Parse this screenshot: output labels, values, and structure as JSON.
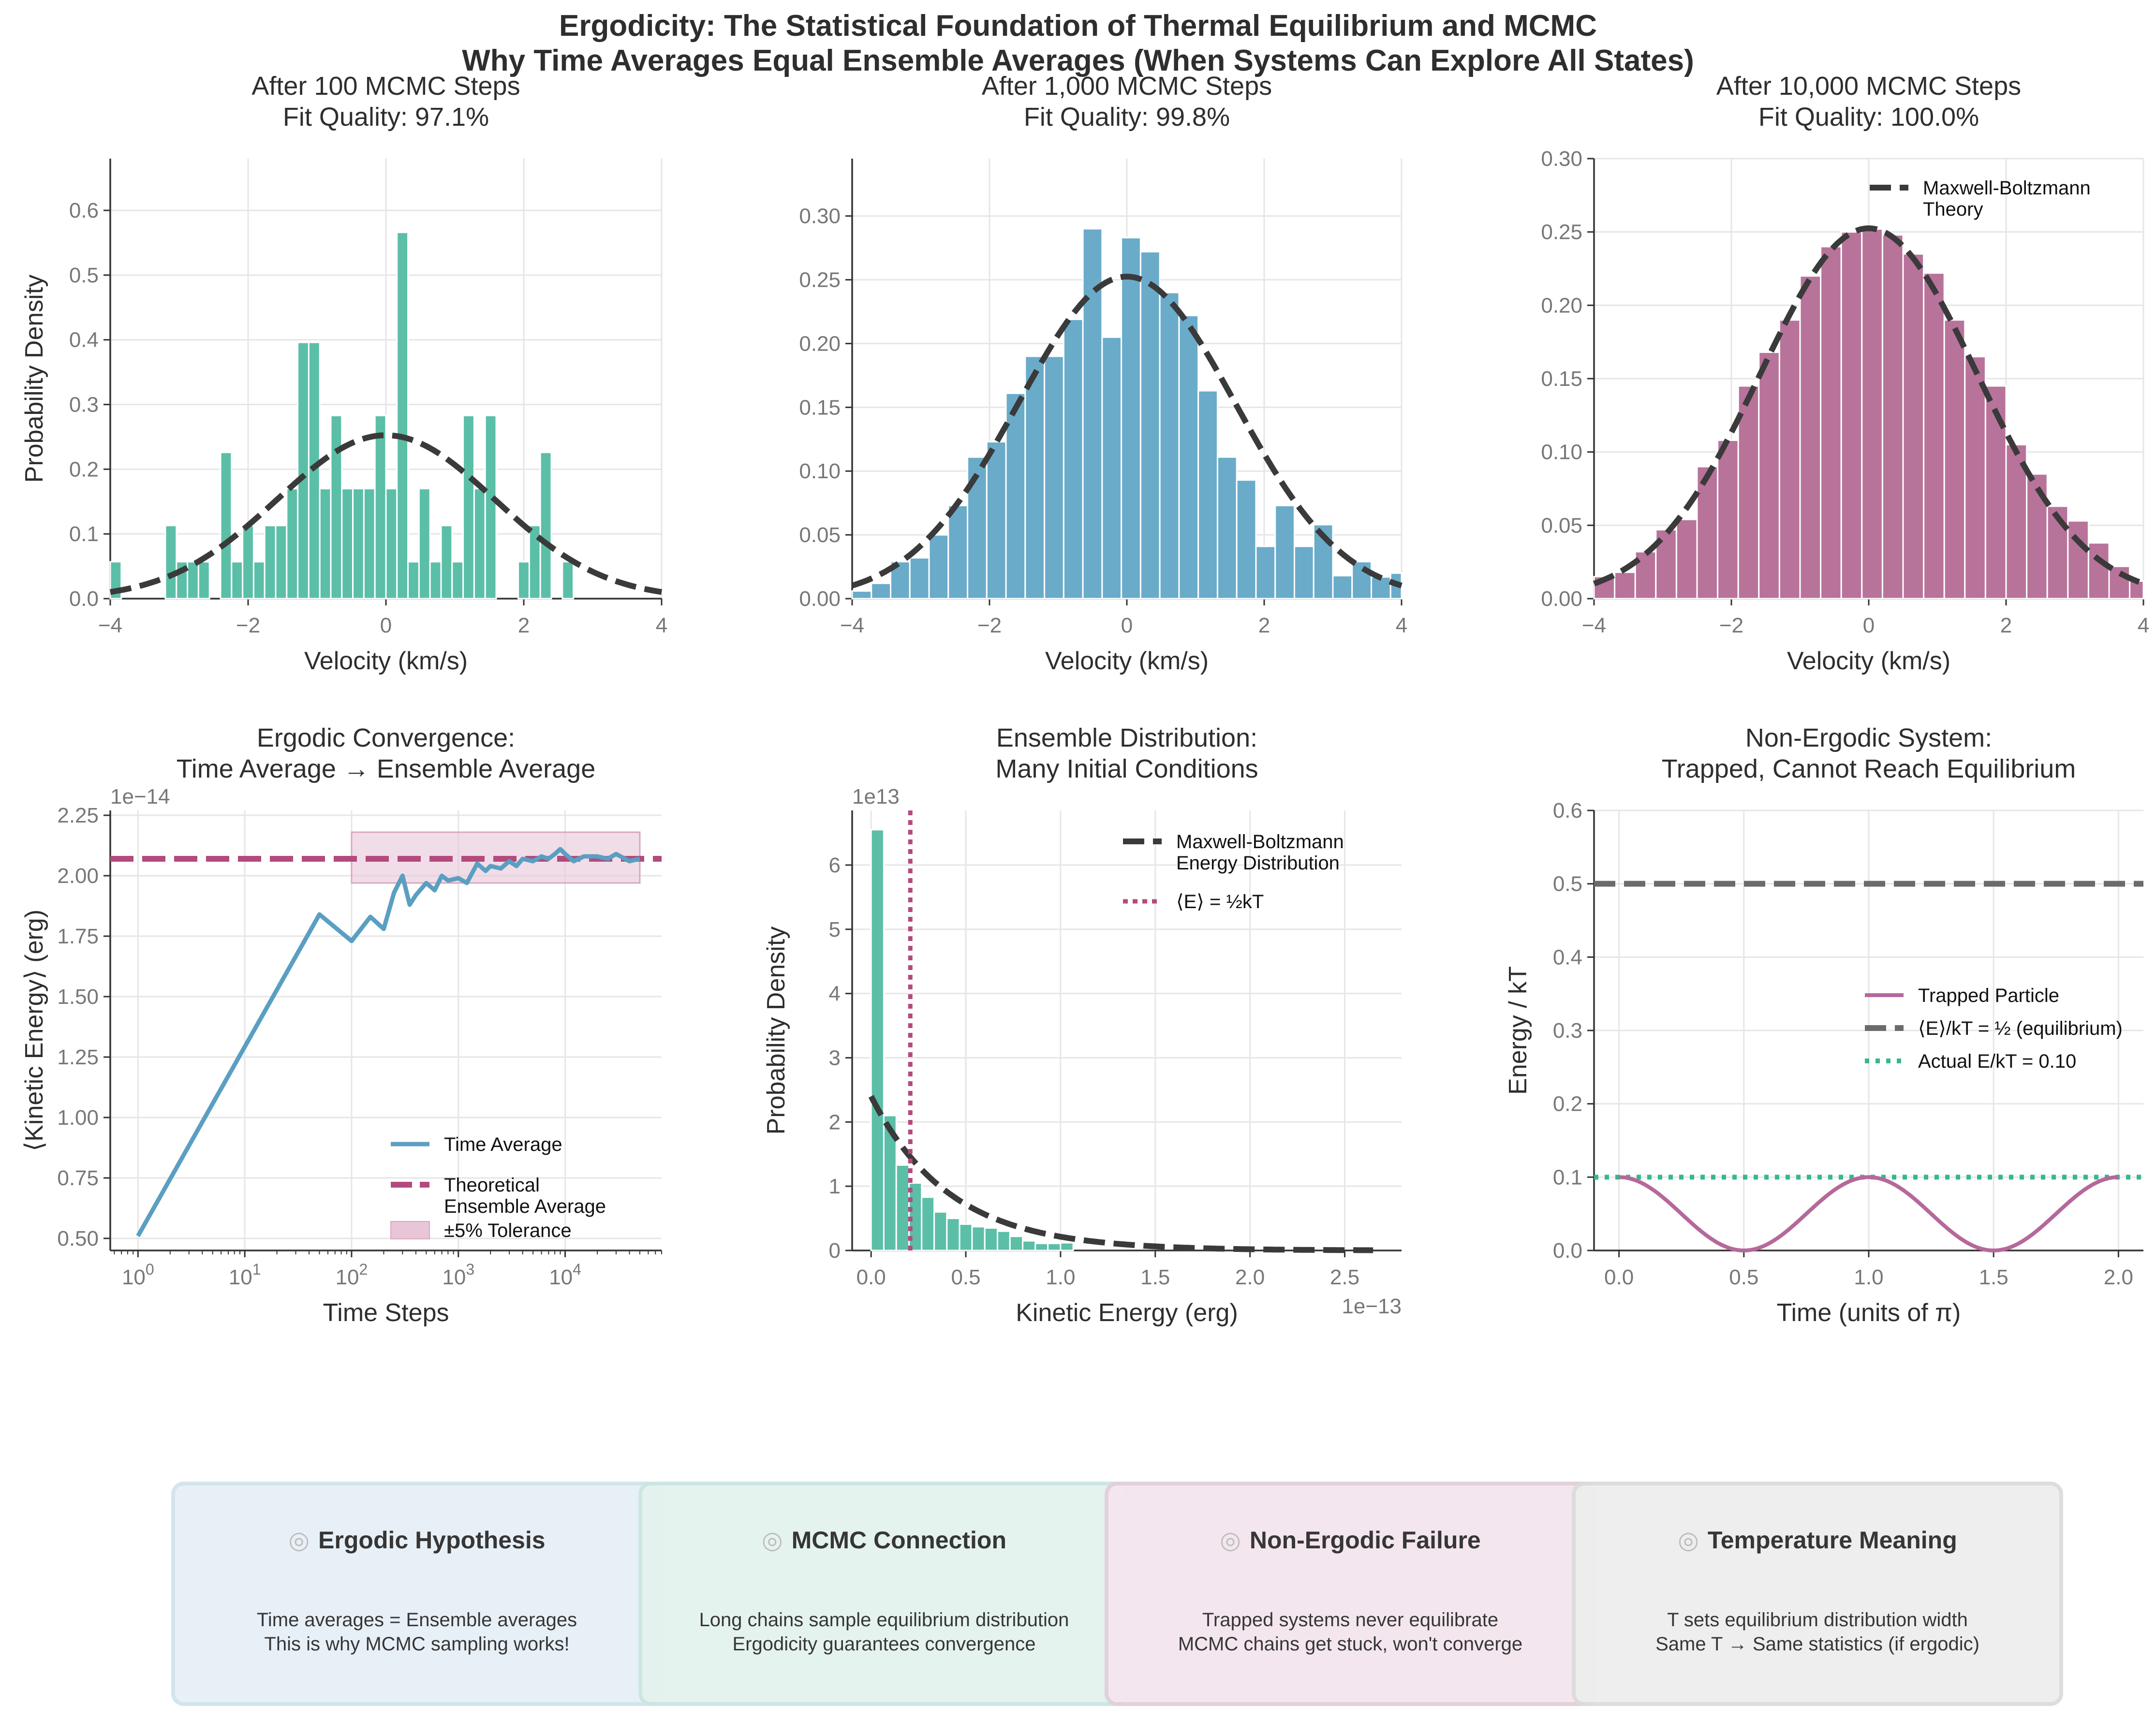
{
  "suptitle": {
    "line1": "Ergodicity: The Statistical Foundation of Thermal Equilibrium and MCMC",
    "line2": "Why Time Averages Equal Ensemble Averages (When Systems Can Explore All States)"
  },
  "colors": {
    "teal": "#5bbfa7",
    "blue": "#6aabc9",
    "magenta": "#b8739a",
    "time_avg_line": "#5a9fc2",
    "theory_dash": "#3a3a3a",
    "ensemble_dash": "#b34a7d",
    "tolerance_fill": "#e8c6d7",
    "trapped": "#b5689b",
    "equilibrium_dash": "#6b6b6b",
    "actual_dot": "#34b88f"
  },
  "cards": [
    {
      "icon": "target-icon",
      "glyph": "◎",
      "title": "Ergodic Hypothesis",
      "line1": "Time averages = Ensemble averages",
      "line2": "This is why MCMC sampling works!",
      "bg": "#e8f0f7",
      "border": "#d2e3ee"
    },
    {
      "icon": "link-icon",
      "glyph": "◎",
      "title": "MCMC Connection",
      "line1": "Long chains sample equilibrium distribution",
      "line2": "Ergodicity guarantees convergence",
      "bg": "#e4f3ef",
      "border": "#cce6e2"
    },
    {
      "icon": "warning-icon",
      "glyph": "◎",
      "title": "Non-Ergodic Failure",
      "line1": "Trapped systems never equilibrate",
      "line2": "MCMC chains get stuck, won't converge",
      "bg": "#f4e6ee",
      "border": "#e1d0da"
    },
    {
      "icon": "thermometer-icon",
      "glyph": "◎",
      "title": "Temperature Meaning",
      "line1": "T sets equilibrium distribution width",
      "line2": "Same T → Same statistics (if ergodic)",
      "bg": "#eeeeee",
      "border": "#dcdcdc"
    }
  ],
  "chart_data": [
    {
      "type": "bar",
      "title": "After 100 MCMC Steps\nFit Quality: 97.1%",
      "xlabel": "Velocity (km/s)",
      "ylabel": "Probability Density",
      "xlim": [
        -4,
        4
      ],
      "ylim": [
        0,
        0.68
      ],
      "xticks": [
        -4,
        -2,
        0,
        2,
        4
      ],
      "xtick_labels": [
        "−4",
        "−2",
        "0",
        "2",
        "4"
      ],
      "yticks": [
        0,
        0.1,
        0.2,
        0.3,
        0.4,
        0.5,
        0.6
      ],
      "ytick_labels": [
        "0.0",
        "0.1",
        "0.2",
        "0.3",
        "0.4",
        "0.5",
        "0.6"
      ],
      "bin_edges": [
        -4.0,
        -3.84,
        -3.68,
        -3.52,
        -3.36,
        -3.2,
        -3.04,
        -2.88,
        -2.72,
        -2.56,
        -2.4,
        -2.24,
        -2.08,
        -1.92,
        -1.76,
        -1.6,
        -1.44,
        -1.28,
        -1.12,
        -0.96,
        -0.8,
        -0.64,
        -0.48,
        -0.32,
        -0.16,
        0.0,
        0.16,
        0.32,
        0.48,
        0.64,
        0.8,
        0.96,
        1.12,
        1.28,
        1.44,
        1.6,
        1.76,
        1.92,
        2.08,
        2.24,
        2.4,
        2.56,
        2.72,
        2.88,
        3.04
      ],
      "values": [
        0.057,
        0,
        0,
        0,
        0,
        0.113,
        0.057,
        0.057,
        0.057,
        0,
        0.226,
        0.057,
        0.113,
        0.057,
        0.113,
        0.113,
        0.17,
        0.396,
        0.396,
        0.17,
        0.283,
        0.17,
        0.17,
        0.17,
        0.283,
        0.17,
        0.566,
        0.057,
        0.17,
        0.057,
        0.113,
        0.057,
        0.283,
        0.17,
        0.283,
        0,
        0,
        0.057,
        0.113,
        0.226,
        0,
        0.057,
        0,
        0
      ],
      "bar_color": "#5bbfa7",
      "theory_curve": {
        "name": "Maxwell-Boltzmann Theory",
        "mu": 0,
        "sigma": 1.58
      }
    },
    {
      "type": "bar",
      "title": "After 1,000 MCMC Steps\nFit Quality: 99.8%",
      "xlabel": "Velocity (km/s)",
      "ylabel": "",
      "xlim": [
        -4,
        4
      ],
      "ylim": [
        0,
        0.345
      ],
      "xticks": [
        -4,
        -2,
        0,
        2,
        4
      ],
      "xtick_labels": [
        "−4",
        "−2",
        "0",
        "2",
        "4"
      ],
      "yticks": [
        0,
        0.05,
        0.1,
        0.15,
        0.2,
        0.25,
        0.3
      ],
      "ytick_labels": [
        "0.00",
        "0.05",
        "0.10",
        "0.15",
        "0.20",
        "0.25",
        "0.30"
      ],
      "bin_edges": [
        -4.0,
        -3.72,
        -3.44,
        -3.16,
        -2.88,
        -2.6,
        -2.32,
        -2.04,
        -1.76,
        -1.48,
        -1.2,
        -0.92,
        -0.64,
        -0.36,
        -0.08,
        0.2,
        0.48,
        0.76,
        1.04,
        1.32,
        1.6,
        1.88,
        2.16,
        2.44,
        2.72,
        3.0,
        3.28,
        3.56,
        3.84,
        4.0
      ],
      "values": [
        0.006,
        0.012,
        0.029,
        0.032,
        0.05,
        0.073,
        0.111,
        0.123,
        0.161,
        0.19,
        0.19,
        0.219,
        0.29,
        0.205,
        0.283,
        0.272,
        0.24,
        0.222,
        0.163,
        0.111,
        0.093,
        0.041,
        0.073,
        0.041,
        0.058,
        0.018,
        0.029,
        0.017,
        0.02
      ],
      "bar_color": "#6aabc9",
      "theory_curve": {
        "name": "Maxwell-Boltzmann Theory",
        "mu": 0,
        "sigma": 1.58
      }
    },
    {
      "type": "bar",
      "title": "After 10,000 MCMC Steps\nFit Quality: 100.0%",
      "xlabel": "Velocity (km/s)",
      "ylabel": "",
      "xlim": [
        -4,
        4
      ],
      "ylim": [
        0,
        0.3
      ],
      "xticks": [
        -4,
        -2,
        0,
        2,
        4
      ],
      "xtick_labels": [
        "−4",
        "−2",
        "0",
        "2",
        "4"
      ],
      "yticks": [
        0,
        0.05,
        0.1,
        0.15,
        0.2,
        0.25,
        0.3
      ],
      "ytick_labels": [
        "0.00",
        "0.05",
        "0.10",
        "0.15",
        "0.20",
        "0.25",
        "0.30"
      ],
      "bin_edges": [
        -4.0,
        -3.7,
        -3.4,
        -3.1,
        -2.8,
        -2.5,
        -2.2,
        -1.9,
        -1.6,
        -1.3,
        -1.0,
        -0.7,
        -0.4,
        -0.1,
        0.2,
        0.5,
        0.8,
        1.1,
        1.4,
        1.7,
        2.0,
        2.3,
        2.6,
        2.9,
        3.2,
        3.5,
        3.8,
        4.0
      ],
      "values": [
        0.015,
        0.018,
        0.032,
        0.047,
        0.054,
        0.09,
        0.108,
        0.145,
        0.168,
        0.19,
        0.22,
        0.24,
        0.25,
        0.252,
        0.248,
        0.235,
        0.222,
        0.19,
        0.165,
        0.145,
        0.105,
        0.085,
        0.063,
        0.053,
        0.038,
        0.022,
        0.012
      ],
      "bar_color": "#b8739a",
      "theory_curve": {
        "name": "Maxwell-Boltzmann Theory",
        "mu": 0,
        "sigma": 1.58
      },
      "legend": {
        "location": "top-right",
        "entries": [
          "Maxwell-Boltzmann\nTheory"
        ]
      }
    },
    {
      "type": "line",
      "title": "Ergodic Convergence:\nTime Average → Ensemble Average",
      "xlabel": "Time Steps",
      "ylabel": "⟨Kinetic Energy⟩ (erg)",
      "xscale": "log",
      "xlim": [
        0.55,
        80000
      ],
      "ylim": [
        0.45,
        2.27
      ],
      "y_offset_label": "1e−14",
      "xticks": [
        1,
        10,
        100,
        1000,
        10000
      ],
      "xtick_labels": [
        "10",
        "10",
        "10",
        "10",
        "10"
      ],
      "xtick_exponents": [
        "0",
        "1",
        "2",
        "3",
        "4"
      ],
      "yticks": [
        0.5,
        0.75,
        1.0,
        1.25,
        1.5,
        1.75,
        2.0,
        2.25
      ],
      "ytick_labels": [
        "0.50",
        "0.75",
        "1.00",
        "1.25",
        "1.50",
        "1.75",
        "2.00",
        "2.25"
      ],
      "series": [
        {
          "name": "Time Average",
          "x": [
            1,
            50,
            100,
            150,
            200,
            250,
            300,
            350,
            400,
            500,
            600,
            700,
            800,
            1000,
            1200,
            1500,
            1800,
            2000,
            2500,
            3000,
            3500,
            4000,
            5000,
            6000,
            7000,
            8000,
            9000,
            10000,
            12000,
            15000,
            20000,
            25000,
            30000,
            40000,
            50000
          ],
          "y": [
            0.51,
            1.84,
            1.73,
            1.83,
            1.78,
            1.93,
            2.0,
            1.88,
            1.92,
            1.97,
            1.94,
            2.0,
            1.98,
            1.99,
            1.97,
            2.05,
            2.02,
            2.04,
            2.03,
            2.06,
            2.04,
            2.07,
            2.06,
            2.08,
            2.07,
            2.09,
            2.11,
            2.09,
            2.06,
            2.08,
            2.08,
            2.07,
            2.09,
            2.06,
            2.07
          ]
        },
        {
          "name": "Theoretical\nEnsemble Average",
          "y_const": 2.07
        }
      ],
      "tolerance_band": {
        "name": "±5% Tolerance",
        "x_range": [
          100,
          50000
        ],
        "y_range": [
          1.97,
          2.18
        ]
      },
      "legend": {
        "location": "lower-right",
        "entries": [
          "Time Average",
          "Theoretical\nEnsemble Average",
          "±5% Tolerance"
        ]
      }
    },
    {
      "type": "bar",
      "title": "Ensemble Distribution:\nMany Initial Conditions",
      "xlabel": "Kinetic Energy (erg)",
      "ylabel": "Probability Density",
      "x_offset_label": "1e−13",
      "y_offset_label": "1e13",
      "xlim": [
        -0.1,
        2.8
      ],
      "ylim": [
        0,
        6.85
      ],
      "xticks": [
        0,
        0.5,
        1.0,
        1.5,
        2.0,
        2.5
      ],
      "xtick_labels": [
        "0.0",
        "0.5",
        "1.0",
        "1.5",
        "2.0",
        "2.5"
      ],
      "yticks": [
        0,
        1,
        2,
        3,
        4,
        5,
        6
      ],
      "ytick_labels": [
        "0",
        "1",
        "2",
        "3",
        "4",
        "5",
        "6"
      ],
      "bin_edges": [
        0,
        0.067,
        0.133,
        0.2,
        0.267,
        0.333,
        0.4,
        0.467,
        0.533,
        0.6,
        0.667,
        0.733,
        0.8,
        0.867,
        0.933,
        1.0,
        1.067
      ],
      "values": [
        6.55,
        2.1,
        1.33,
        1.05,
        0.83,
        0.6,
        0.5,
        0.41,
        0.37,
        0.35,
        0.3,
        0.22,
        0.15,
        0.11,
        0.11,
        0.12
      ],
      "bar_color": "#5bbfa7",
      "theory_curve": {
        "name": "Maxwell-Boltzmann\nEnergy Distribution",
        "x_range": [
          0,
          2.65
        ]
      },
      "mean_line": {
        "name": "⟨E⟩ = ½kT",
        "x": 0.207
      },
      "legend": {
        "location": "top-right",
        "entries": [
          "Maxwell-Boltzmann\nEnergy Distribution",
          "⟨E⟩ = ½kT"
        ]
      }
    },
    {
      "type": "line",
      "title": "Non-Ergodic System:\nTrapped, Cannot Reach Equilibrium",
      "xlabel": "Time (units of π)",
      "ylabel": "Energy / kT",
      "xlim": [
        -0.1,
        2.1
      ],
      "ylim": [
        0,
        0.6
      ],
      "xticks": [
        0,
        0.5,
        1.0,
        1.5,
        2.0
      ],
      "xtick_labels": [
        "0.0",
        "0.5",
        "1.0",
        "1.5",
        "2.0"
      ],
      "yticks": [
        0,
        0.1,
        0.2,
        0.3,
        0.4,
        0.5,
        0.6
      ],
      "ytick_labels": [
        "0.0",
        "0.1",
        "0.2",
        "0.3",
        "0.4",
        "0.5",
        "0.6"
      ],
      "series": [
        {
          "name": "Trapped Particle",
          "formula": "0.10 * cos(pi*t)^2",
          "x_range": [
            0,
            2
          ]
        },
        {
          "name": "⟨E⟩/kT = ½ (equilibrium)",
          "y_const": 0.5
        },
        {
          "name": "Actual E/kT = 0.10",
          "y_const": 0.1
        }
      ],
      "legend": {
        "location": "center-right",
        "entries": [
          "Trapped Particle",
          "⟨E⟩/kT = ½ (equilibrium)",
          "Actual E/kT = 0.10"
        ]
      }
    }
  ]
}
